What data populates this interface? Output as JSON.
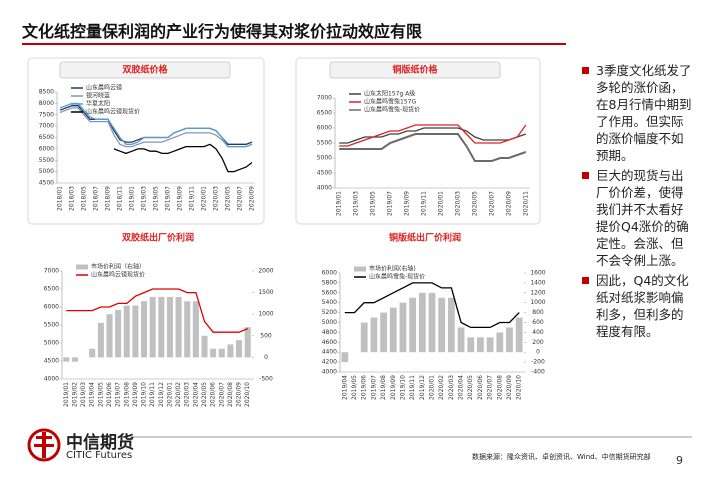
{
  "header": {
    "title": "文化纸控量保利润的产业行为使得其对浆价拉动效应有限"
  },
  "chart_data": [
    {
      "type": "line",
      "title": "双胶纸价格",
      "legend": "upper left",
      "categories": [
        "2018/01",
        null,
        "2018/03",
        null,
        "2018/05",
        null,
        "2018/07",
        null,
        "2018/09",
        null,
        "2018/11",
        null,
        "2019/01",
        null,
        "2019/03",
        null,
        "2019/05",
        null,
        "2019/07",
        null,
        "2019/09",
        null,
        "2019/11",
        null,
        "2020/01",
        null,
        "2020/03",
        null,
        "2020/05",
        null,
        "2020/07",
        null,
        "2020/09"
      ],
      "ylim": [
        4500,
        8500
      ],
      "yticks": [
        4500,
        5000,
        5500,
        6000,
        6500,
        7000,
        7500,
        8000,
        8500
      ],
      "series": [
        {
          "name": "山东晨鸣云镜",
          "color": "#1f3864",
          "values": [
            7700,
            7800,
            7900,
            7900,
            7600,
            7300,
            7300,
            7300,
            7300,
            6800,
            6400,
            6300,
            6300,
            6400,
            6500,
            6500,
            6500,
            6500,
            6500,
            6700,
            6800,
            6900,
            6900,
            6900,
            6900,
            6900,
            6800,
            6500,
            6200,
            6200,
            6200,
            6200,
            6300
          ]
        },
        {
          "name": "银河晓蓝",
          "color": "#8497b0",
          "values": [
            7600,
            7700,
            7800,
            7800,
            7500,
            7200,
            7200,
            7200,
            7200,
            6600,
            6200,
            6100,
            6100,
            6200,
            6300,
            6300,
            6300,
            6300,
            6400,
            6500,
            6600,
            6700,
            6700,
            6700,
            6700,
            6700,
            6600,
            6400,
            6100,
            6100,
            6100,
            6100,
            6200
          ]
        },
        {
          "name": "华夏太阳",
          "color": "#5b9bd5",
          "values": [
            7800,
            7900,
            8000,
            8000,
            7700,
            7400,
            7300,
            7300,
            7300,
            6900,
            6500,
            6200,
            6200,
            6300,
            6500,
            6500,
            6500,
            6500,
            6500,
            6700,
            6800,
            6900,
            6900,
            6900,
            6900,
            6900,
            6800,
            6500,
            6100,
            6100,
            6100,
            6100,
            6200
          ]
        },
        {
          "name": "山东晨鸣云镜现货价",
          "color": "#000000",
          "values": [
            null,
            null,
            null,
            null,
            null,
            null,
            null,
            null,
            null,
            6000,
            5900,
            5800,
            5900,
            6000,
            6000,
            5900,
            5900,
            5800,
            5800,
            5900,
            6000,
            6100,
            6100,
            6100,
            6100,
            6200,
            6000,
            5600,
            5000,
            5000,
            5100,
            5200,
            5400
          ]
        }
      ]
    },
    {
      "type": "line",
      "title": "铜版纸价格",
      "legend": "upper left",
      "categories": [
        "2019/01",
        null,
        "2019/03",
        null,
        "2019/05",
        null,
        "2019/07",
        null,
        "2019/09",
        null,
        "2019/11",
        null,
        "2020/01",
        null,
        "2020/03",
        null,
        "2020/05",
        null,
        "2020/07",
        null,
        "2020/09",
        null,
        "2020/11"
      ],
      "ylim": [
        4000,
        7000
      ],
      "yticks": [
        4000,
        4500,
        5000,
        5500,
        6000,
        6500,
        7000
      ],
      "series": [
        {
          "name": "山东太阳157g A级",
          "color": "#404040",
          "values": [
            5500,
            5500,
            5600,
            5700,
            5700,
            5700,
            5800,
            5800,
            5900,
            5900,
            6000,
            6000,
            6000,
            6000,
            6000,
            5900,
            5700,
            5600,
            5600,
            5600,
            5600,
            5700,
            5800
          ]
        },
        {
          "name": "山东晨鸣雪兔157G",
          "color": "#e02020",
          "values": [
            5400,
            5400,
            5500,
            5600,
            5700,
            5800,
            5900,
            5900,
            6000,
            6100,
            6100,
            6100,
            6100,
            6100,
            6100,
            5800,
            5500,
            5500,
            5500,
            5500,
            5600,
            5700,
            6100
          ]
        },
        {
          "name": "山东晨鸣雪兔-现货价",
          "color": "#6b6b6b",
          "values": [
            5300,
            5300,
            5300,
            5300,
            5300,
            5300,
            5500,
            5600,
            5700,
            5800,
            5800,
            5800,
            5800,
            5800,
            5800,
            5400,
            4900,
            4900,
            4900,
            5000,
            5000,
            5100,
            5200
          ]
        }
      ]
    },
    {
      "type": "bar-line",
      "title": "双胶纸出厂价利润",
      "legend": "upper left",
      "categories": [
        "2019/01",
        "2019/02",
        "2019/03",
        "2019/04",
        "2019/05",
        "2019/06",
        "2019/07",
        "2019/08",
        "2019/09",
        "2019/10",
        "2019/11",
        "2019/12",
        "2020/01",
        "2020/02",
        "2020/03",
        "2020/04",
        "2020/05",
        "2020/06",
        "2020/07",
        "2020/08",
        "2020/09",
        "2020/10"
      ],
      "ylim": [
        4000,
        7000
      ],
      "yticks": [
        4000,
        4500,
        5000,
        5500,
        6000,
        6500,
        7000
      ],
      "y2lim": [
        -500,
        2000
      ],
      "y2ticks": [
        -500,
        0,
        500,
        1000,
        1500,
        2000
      ],
      "series": [
        {
          "name": "市场价利润（右轴）",
          "color": "#c0c0c0",
          "axis": "y2",
          "values": [
            -100,
            -100,
            0,
            200,
            800,
            1000,
            1100,
            1200,
            1200,
            1300,
            1400,
            1400,
            1400,
            1400,
            1300,
            1300,
            500,
            200,
            200,
            300,
            400,
            700
          ]
        },
        {
          "name": "山东晨鸣云镜现货价",
          "color": "#e00000",
          "values": [
            5900,
            5900,
            5900,
            5900,
            6000,
            6000,
            6100,
            6100,
            6300,
            6400,
            6500,
            6500,
            6500,
            6500,
            6400,
            6400,
            5600,
            5300,
            5300,
            5300,
            5300,
            5400
          ]
        }
      ]
    },
    {
      "type": "bar-line",
      "title": "铜版纸出厂价利润",
      "legend": "upper left",
      "categories": [
        "2019/04",
        "2019/05",
        "2019/06",
        "2019/07",
        "2019/08",
        "2019/09",
        "2019/10",
        "2019/11",
        "2019/12",
        "2020/01",
        "2020/02",
        "2020/03",
        "2020/04",
        "2020/05",
        "2020/06",
        "2020/07",
        "2020/08",
        "2020/09",
        "2020/10"
      ],
      "ylim": [
        4000,
        6000
      ],
      "yticks": [
        4000,
        4200,
        4400,
        4600,
        4800,
        5000,
        5200,
        5400,
        5600,
        5800,
        6000
      ],
      "y2lim": [
        -400,
        1600
      ],
      "y2ticks": [
        -400,
        -200,
        0,
        200,
        400,
        600,
        800,
        1000,
        1200,
        1400,
        1600
      ],
      "series": [
        {
          "name": "市场价利润(右轴)",
          "color": "#c0c0c0",
          "axis": "y2",
          "values": [
            -200,
            0,
            600,
            700,
            800,
            900,
            1000,
            1100,
            1200,
            1200,
            1100,
            1100,
            500,
            300,
            300,
            300,
            400,
            500,
            700
          ]
        },
        {
          "name": "山东晨鸣雪兔-现货价",
          "color": "#000000",
          "values": [
            5200,
            5200,
            5400,
            5400,
            5500,
            5600,
            5700,
            5800,
            5800,
            5800,
            5700,
            5700,
            5000,
            4900,
            4900,
            4900,
            5000,
            5000,
            5200
          ]
        }
      ]
    }
  ],
  "bullets": [
    "3季度文化纸发了多轮的涨价函，在8月行情中期到了作用。但实际的涨价幅度不如预期。",
    "巨大的现货与出厂价价差，使得我们并不太看好提价Q4涨价的确定性。会涨、但不会令俐上涨。",
    "因此，Q4的文化纸对纸浆影响偏利多，但利多的程度有限。"
  ],
  "footer": {
    "logo_cn": "中信期货",
    "logo_en": "CITIC Futures",
    "source": "数据来源：隆众资讯、卓创资讯、Wind、中信期货研究部",
    "page": "9"
  }
}
